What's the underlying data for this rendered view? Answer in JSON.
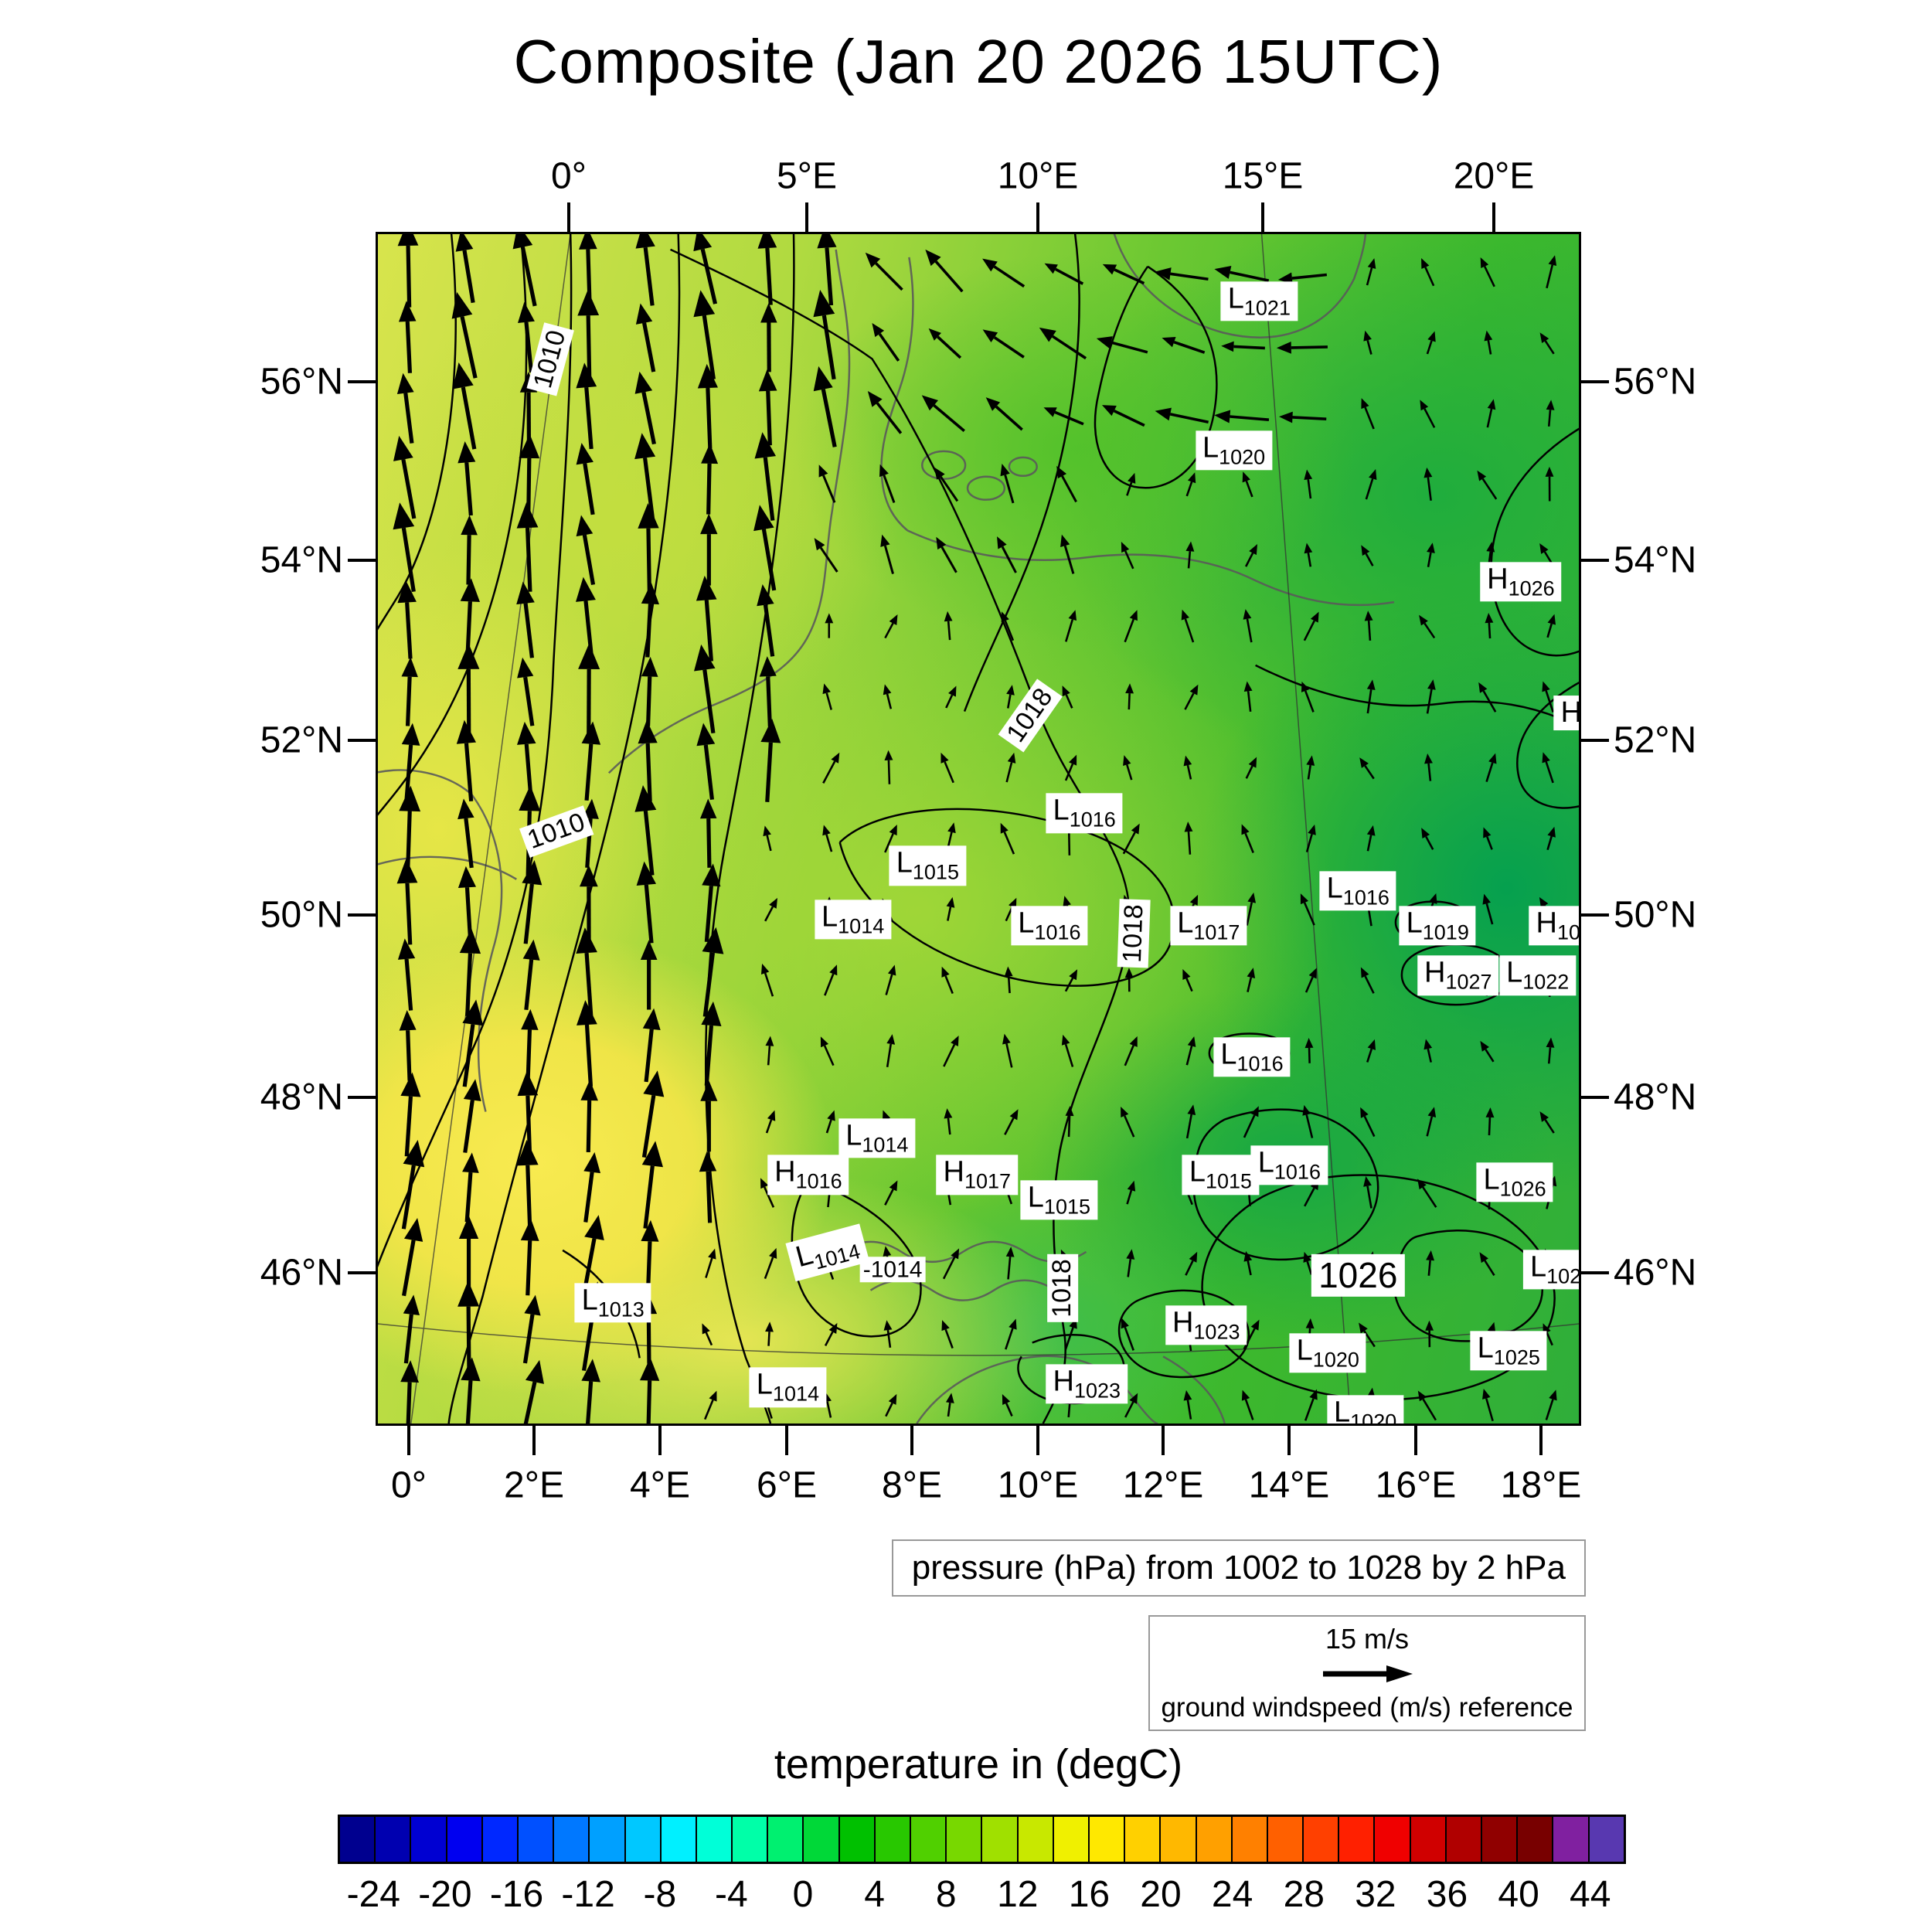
{
  "title": "Composite (Jan 20 2026 15UTC)",
  "axes": {
    "top": [
      "0°",
      "5°E",
      "10°E",
      "15°E",
      "20°E"
    ],
    "bottom": [
      "0°",
      "2°E",
      "4°E",
      "6°E",
      "8°E",
      "10°E",
      "12°E",
      "14°E",
      "16°E",
      "18°E"
    ],
    "left": [
      "56°N",
      "54°N",
      "52°N",
      "50°N",
      "48°N",
      "46°N"
    ],
    "right": [
      "56°N",
      "54°N",
      "52°N",
      "50°N",
      "48°N",
      "46°N"
    ]
  },
  "pressure_caption": "pressure (hPa) from 1002 to 1028 by 2 hPa",
  "wind_legend": {
    "speed_label": "15 m/s",
    "caption": "ground windspeed (m/s) reference"
  },
  "colorbar": {
    "title": "temperature in (degC)",
    "min": -26,
    "max": 46,
    "step": 2,
    "tick_labels": [
      -24,
      -20,
      -16,
      -12,
      -8,
      -4,
      0,
      4,
      8,
      12,
      16,
      20,
      24,
      28,
      32,
      36,
      40,
      44
    ],
    "colors": [
      "#00008f",
      "#0000b0",
      "#0000d2",
      "#0000f0",
      "#0028ff",
      "#0050ff",
      "#0078ff",
      "#00a0ff",
      "#00c8ff",
      "#00f0ff",
      "#00ffd8",
      "#00ffa8",
      "#00f070",
      "#00d838",
      "#00c000",
      "#28c800",
      "#50d000",
      "#78d800",
      "#a0e000",
      "#c8e800",
      "#f0f000",
      "#ffe800",
      "#ffd000",
      "#ffb800",
      "#ffa000",
      "#ff8000",
      "#ff6000",
      "#ff4000",
      "#ff2000",
      "#f00000",
      "#d00000",
      "#b00000",
      "#900000",
      "#780000",
      "#8020a0",
      "#5838b0"
    ]
  },
  "chart_data": {
    "type": "heatmap",
    "title": "Composite (Jan 20 2026 15UTC)",
    "fields": [
      "temperature (degC), color shaded",
      "sea level pressure (hPa), black contours",
      "ground wind vectors (m/s), arrows"
    ],
    "lon_range": [
      0,
      20
    ],
    "lat_range": [
      44.5,
      57.5
    ],
    "pressure_contour_min": 1002,
    "pressure_contour_max": 1028,
    "pressure_contour_interval": 2,
    "wind_reference_ms": 15,
    "temperature_range_degC": [
      -26,
      46
    ],
    "wind_field_note": "strong southerly flow over western quarter (Atlantic/France), westward flow along northern edge, weak northward flow elsewhere",
    "pressure_labels": [
      {
        "t": "c",
        "v": "1010",
        "x": 0.143,
        "y": 0.105,
        "r": -75
      },
      {
        "t": "L",
        "v": "1021",
        "x": 0.731,
        "y": 0.056
      },
      {
        "t": "L",
        "v": "1020",
        "x": 0.71,
        "y": 0.181
      },
      {
        "t": "H",
        "v": "1026",
        "x": 0.948,
        "y": 0.291
      },
      {
        "t": "H",
        "v": "",
        "x": 0.99,
        "y": 0.401
      },
      {
        "t": "c",
        "v": "1018",
        "x": 0.541,
        "y": 0.403,
        "r": -55
      },
      {
        "t": "L",
        "v": "1016",
        "x": 0.586,
        "y": 0.485
      },
      {
        "t": "c",
        "v": "1010",
        "x": 0.148,
        "y": 0.5,
        "r": -20
      },
      {
        "t": "L",
        "v": "1015",
        "x": 0.456,
        "y": 0.529
      },
      {
        "t": "L",
        "v": "1014",
        "x": 0.394,
        "y": 0.574
      },
      {
        "t": "L",
        "v": "1016",
        "x": 0.557,
        "y": 0.579
      },
      {
        "t": "c",
        "v": "1018",
        "x": 0.627,
        "y": 0.586,
        "r": -88
      },
      {
        "t": "L",
        "v": "1017",
        "x": 0.689,
        "y": 0.579
      },
      {
        "t": "L",
        "v": "1016",
        "x": 0.813,
        "y": 0.55
      },
      {
        "t": "L",
        "v": "1019",
        "x": 0.879,
        "y": 0.579
      },
      {
        "t": "H",
        "v": "10",
        "x": 0.979,
        "y": 0.579
      },
      {
        "t": "H",
        "v": "1027",
        "x": 0.896,
        "y": 0.621
      },
      {
        "t": "L",
        "v": "1022",
        "x": 0.962,
        "y": 0.621
      },
      {
        "t": "L",
        "v": "1016",
        "x": 0.725,
        "y": 0.689
      },
      {
        "t": "L",
        "v": "1014",
        "x": 0.414,
        "y": 0.757
      },
      {
        "t": "H",
        "v": "1016",
        "x": 0.357,
        "y": 0.788
      },
      {
        "t": "H",
        "v": "1017",
        "x": 0.497,
        "y": 0.788
      },
      {
        "t": "L",
        "v": "1015",
        "x": 0.565,
        "y": 0.809
      },
      {
        "t": "L",
        "v": "1015",
        "x": 0.699,
        "y": 0.788
      },
      {
        "t": "L",
        "v": "1016",
        "x": 0.756,
        "y": 0.78
      },
      {
        "t": "L",
        "v": "1026",
        "x": 0.943,
        "y": 0.794
      },
      {
        "t": "L",
        "v": "1014",
        "x": 0.373,
        "y": 0.853,
        "r": -15
      },
      {
        "t": "p",
        "v": "-1014",
        "x": 0.427,
        "y": 0.867
      },
      {
        "t": "c",
        "v": "1018",
        "x": 0.568,
        "y": 0.883,
        "r": -90
      },
      {
        "t": "b",
        "v": "1026",
        "x": 0.813,
        "y": 0.872
      },
      {
        "t": "L",
        "v": "102",
        "x": 0.977,
        "y": 0.867
      },
      {
        "t": "L",
        "v": "1013",
        "x": 0.195,
        "y": 0.895
      },
      {
        "t": "H",
        "v": "1023",
        "x": 0.687,
        "y": 0.914
      },
      {
        "t": "L",
        "v": "1020",
        "x": 0.788,
        "y": 0.937
      },
      {
        "t": "L",
        "v": "1025",
        "x": 0.938,
        "y": 0.935
      },
      {
        "t": "L",
        "v": "1014",
        "x": 0.34,
        "y": 0.966
      },
      {
        "t": "H",
        "v": "1023",
        "x": 0.588,
        "y": 0.963
      },
      {
        "t": "L",
        "v": "1020",
        "x": 0.819,
        "y": 0.989
      }
    ]
  }
}
